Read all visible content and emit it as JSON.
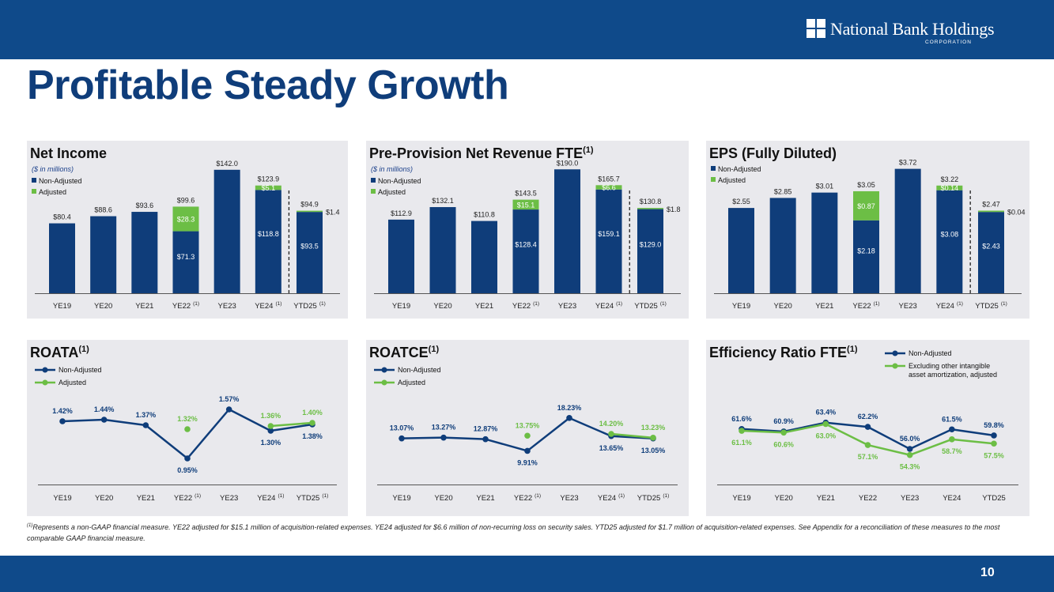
{
  "header": {
    "logo_name": "National Bank Holdings",
    "logo_sub": "CORPORATION",
    "title": "Profitable Steady Growth"
  },
  "footer": {
    "footnote_marker": "(1)",
    "footnote": "Represents a non-GAAP financial measure. YE22 adjusted for $15.1 million of acquisition-related expenses. YE24 adjusted for $6.6 million of non-recurring loss on security sales. YTD25 adjusted for $1.7 million of acquisition-related expenses. See Appendix for a reconciliation of these measures to the most comparable GAAP financial measure.",
    "page_number": "10"
  },
  "colors": {
    "navy": "#0f3d7a",
    "green": "#6cbe45",
    "band": "#0f4a8a",
    "panel": "#e9e9ed"
  },
  "chart_data": [
    {
      "id": "net-income",
      "type": "bar",
      "title": "Net Income",
      "title_sup": "",
      "subtitle": "($ in millions)",
      "legend": [
        "Non-Adjusted",
        "Adjusted"
      ],
      "categories": [
        "YE19",
        "YE20",
        "YE21",
        "YE22",
        "YE23",
        "YE24",
        "YTD25"
      ],
      "category_sup": [
        "",
        "",
        "",
        "(1)",
        "",
        "(1)",
        "(1)"
      ],
      "series": [
        {
          "name": "Non-Adjusted",
          "values": [
            80.4,
            88.6,
            93.6,
            71.3,
            142.0,
            118.8,
            93.5
          ]
        },
        {
          "name": "Adjusted",
          "values": [
            0,
            0,
            0,
            28.3,
            0,
            5.1,
            1.4
          ]
        }
      ],
      "total_labels": [
        "$80.4",
        "$88.6",
        "$93.6",
        "$99.6",
        "$142.0",
        "$123.9",
        "$94.9"
      ],
      "base_labels": [
        "",
        "",
        "",
        "$71.3",
        "",
        "$118.8",
        "$93.5"
      ],
      "adj_labels": [
        "",
        "",
        "",
        "$28.3",
        "",
        "$5.1",
        "$1.4"
      ],
      "ylim": [
        0,
        150
      ]
    },
    {
      "id": "pprn",
      "type": "bar",
      "title": "Pre-Provision Net Revenue FTE",
      "title_sup": "(1)",
      "subtitle": "($ in millions)",
      "legend": [
        "Non-Adjusted",
        "Adjusted"
      ],
      "categories": [
        "YE19",
        "YE20",
        "YE21",
        "YE22",
        "YE23",
        "YE24",
        "YTD25"
      ],
      "category_sup": [
        "",
        "",
        "",
        "(1)",
        "",
        "(1)",
        "(1)"
      ],
      "series": [
        {
          "name": "Non-Adjusted",
          "values": [
            112.9,
            132.1,
            110.8,
            128.4,
            190.0,
            159.1,
            129.0
          ]
        },
        {
          "name": "Adjusted",
          "values": [
            0,
            0,
            0,
            15.1,
            0,
            6.6,
            1.8
          ]
        }
      ],
      "total_labels": [
        "$112.9",
        "$132.1",
        "$110.8",
        "$143.5",
        "$190.0",
        "$165.7",
        "$130.8"
      ],
      "base_labels": [
        "",
        "",
        "",
        "$128.4",
        "",
        "$159.1",
        "$129.0"
      ],
      "adj_labels": [
        "",
        "",
        "",
        "$15.1",
        "",
        "$6.6",
        "$1.8"
      ],
      "ylim": [
        0,
        200
      ]
    },
    {
      "id": "eps",
      "type": "bar",
      "title": "EPS (Fully Diluted)",
      "title_sup": "",
      "subtitle": "",
      "legend": [
        "Non-Adjusted",
        "Adjusted"
      ],
      "categories": [
        "YE19",
        "YE20",
        "YE21",
        "YE22",
        "YE23",
        "YE24",
        "YTD25"
      ],
      "category_sup": [
        "",
        "",
        "",
        "(1)",
        "",
        "(1)",
        "(1)"
      ],
      "series": [
        {
          "name": "Non-Adjusted",
          "values": [
            2.55,
            2.85,
            3.01,
            2.18,
            3.72,
            3.08,
            2.43
          ]
        },
        {
          "name": "Adjusted",
          "values": [
            0,
            0,
            0,
            0.87,
            0,
            0.14,
            0.04
          ]
        }
      ],
      "total_labels": [
        "$2.55",
        "$2.85",
        "$3.01",
        "$3.05",
        "$3.72",
        "$3.22",
        "$2.47"
      ],
      "base_labels": [
        "",
        "",
        "",
        "$2.18",
        "",
        "$3.08",
        "$2.43"
      ],
      "adj_labels": [
        "",
        "",
        "",
        "$0.87",
        "",
        "$0.14",
        "$0.04"
      ],
      "ylim": [
        0,
        3.9
      ]
    },
    {
      "id": "roata",
      "type": "line",
      "title": "ROATA",
      "title_sup": "(1)",
      "legend": [
        "Non-Adjusted",
        "Adjusted"
      ],
      "categories": [
        "YE19",
        "YE20",
        "YE21",
        "YE22",
        "YE23",
        "YE24",
        "YTD25"
      ],
      "category_sup": [
        "",
        "",
        "",
        "(1)",
        "",
        "(1)",
        "(1)"
      ],
      "series": [
        {
          "name": "Non-Adjusted",
          "values": [
            1.42,
            1.44,
            1.37,
            0.95,
            1.57,
            1.3,
            1.38
          ],
          "labels": [
            "1.42%",
            "1.44%",
            "1.37%",
            "0.95%",
            "1.57%",
            "1.30%",
            "1.38%"
          ]
        },
        {
          "name": "Adjusted",
          "values": [
            null,
            null,
            null,
            1.32,
            null,
            1.36,
            1.4
          ],
          "labels": [
            "",
            "",
            "",
            "1.32%",
            "",
            "1.36%",
            "1.40%"
          ]
        }
      ],
      "ylim": [
        0.8,
        1.7
      ]
    },
    {
      "id": "roatce",
      "type": "line",
      "title": "ROATCE",
      "title_sup": "(1)",
      "legend": [
        "Non-Adjusted",
        "Adjusted"
      ],
      "categories": [
        "YE19",
        "YE20",
        "YE21",
        "YE22",
        "YE23",
        "YE24",
        "YTD25"
      ],
      "category_sup": [
        "",
        "",
        "",
        "(1)",
        "",
        "(1)",
        "(1)"
      ],
      "series": [
        {
          "name": "Non-Adjusted",
          "values": [
            13.07,
            13.27,
            12.87,
            9.91,
            18.23,
            13.65,
            13.05
          ],
          "labels": [
            "13.07%",
            "13.27%",
            "12.87%",
            "9.91%",
            "18.23%",
            "13.65%",
            "13.05%"
          ]
        },
        {
          "name": "Adjusted",
          "values": [
            null,
            null,
            null,
            13.75,
            null,
            14.2,
            13.23
          ],
          "labels": [
            "",
            "",
            "",
            "13.75%",
            "",
            "14.20%",
            "13.23%"
          ]
        }
      ],
      "ylim": [
        5,
        23
      ]
    },
    {
      "id": "efficiency",
      "type": "line",
      "title": "Efficiency Ratio FTE",
      "title_sup": "(1)",
      "legend": [
        "Non-Adjusted",
        "Excluding other intangible asset amortization, adjusted"
      ],
      "categories": [
        "YE19",
        "YE20",
        "YE21",
        "YE22",
        "YE23",
        "YE24",
        "YTD25"
      ],
      "category_sup": [
        "",
        "",
        "",
        "",
        "",
        "",
        ""
      ],
      "series": [
        {
          "name": "Non-Adjusted",
          "values": [
            61.6,
            60.9,
            63.4,
            62.2,
            56.0,
            61.5,
            59.8
          ],
          "labels": [
            "61.6%",
            "60.9%",
            "63.4%",
            "62.2%",
            "56.0%",
            "61.5%",
            "59.8%"
          ]
        },
        {
          "name": "Excluding other intangible asset amortization, adjusted",
          "values": [
            61.1,
            60.6,
            63.0,
            57.1,
            54.3,
            58.7,
            57.5
          ],
          "labels": [
            "61.1%",
            "60.6%",
            "63.0%",
            "57.1%",
            "54.3%",
            "58.7%",
            "57.5%"
          ]
        }
      ],
      "ylim": [
        50,
        70
      ]
    }
  ]
}
